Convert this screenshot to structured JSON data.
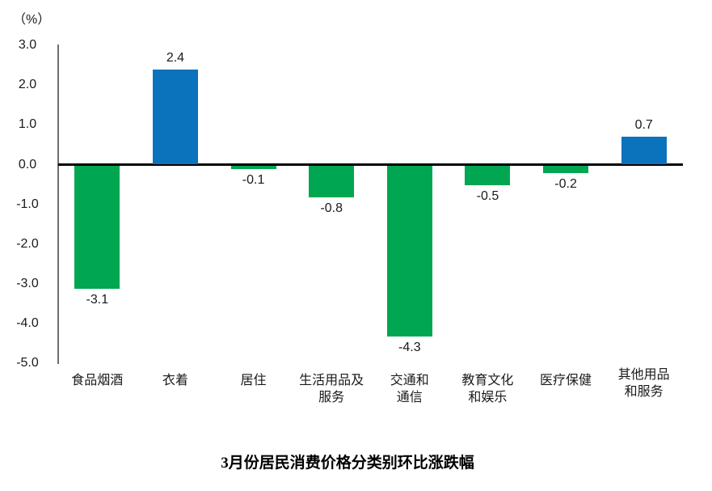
{
  "chart_data": {
    "type": "bar",
    "title": "3月份居民消费价格分类别环比涨跌幅",
    "unit_label": "（%）",
    "categories": [
      "食品烟酒",
      "衣着",
      "居住",
      "生活用品及\n服务",
      "交通和\n通信",
      "教育文化\n和娱乐",
      "医疗保健",
      "其他用品\n和服务"
    ],
    "values": [
      -3.1,
      2.4,
      -0.1,
      -0.8,
      -4.3,
      -0.5,
      -0.2,
      0.7
    ],
    "value_labels": [
      "-3.1",
      "2.4",
      "-0.1",
      "-0.8",
      "-4.3",
      "-0.5",
      "-0.2",
      "0.7"
    ],
    "yticks": [
      "3.0",
      "2.0",
      "1.0",
      "0.0",
      "-1.0",
      "-2.0",
      "-3.0",
      "-4.0",
      "-5.0"
    ],
    "ylim": [
      -5.0,
      3.0
    ],
    "ytick_step": 1.0,
    "grid": false,
    "legend": "none",
    "positive_color": "#0b72bc",
    "negative_color": "#00a651",
    "xlabel": "",
    "ylabel": "（%）"
  }
}
